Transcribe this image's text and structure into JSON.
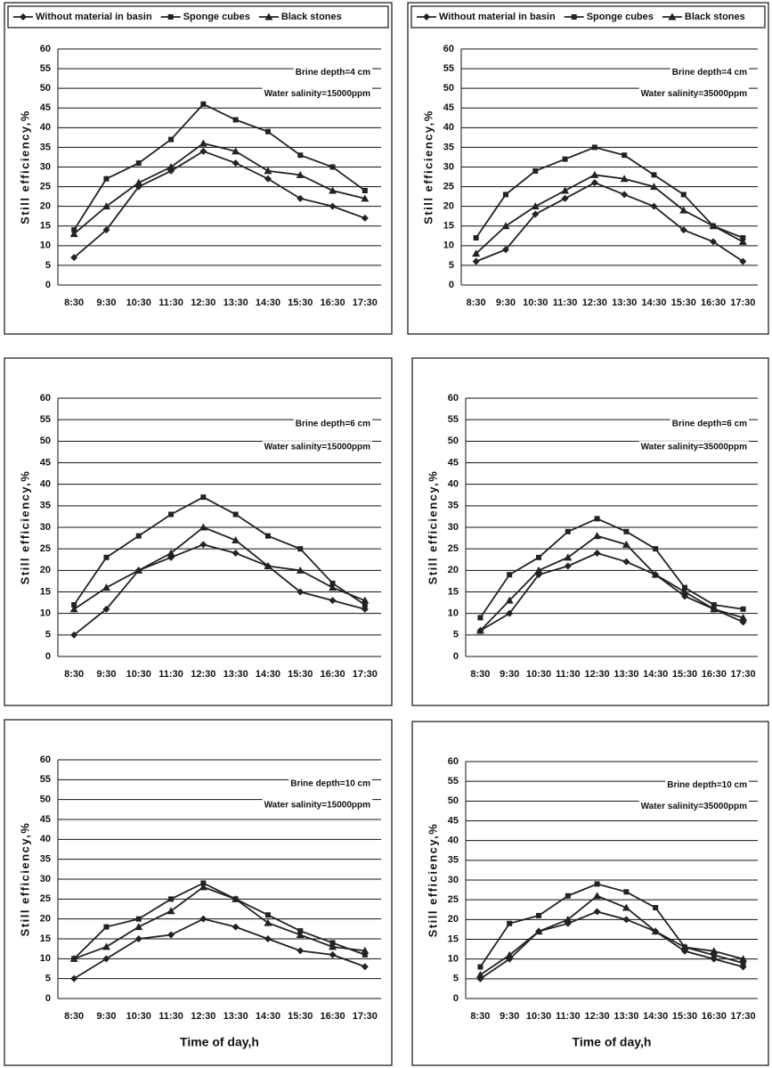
{
  "chart_data": [
    {
      "type": "line",
      "ylabel": "Still efficiency,%",
      "categories": [
        "8:30",
        "9:30",
        "10:30",
        "11:30",
        "12:30",
        "13:30",
        "14:30",
        "15:30",
        "16:30",
        "17:30"
      ],
      "ylim": [
        0,
        60
      ],
      "yticks": [
        0,
        5,
        10,
        15,
        20,
        25,
        30,
        35,
        40,
        45,
        50,
        55,
        60
      ],
      "grid": true,
      "annotations": [
        "Brine depth=4 cm",
        "Water salinity=15000ppm"
      ],
      "series": [
        {
          "name": "Without material in basin",
          "color": "#222",
          "marker": "diamond",
          "values": [
            7,
            14,
            25,
            29,
            34,
            31,
            27,
            22,
            20,
            17
          ]
        },
        {
          "name": "Sponge cubes",
          "color": "#222",
          "marker": "square",
          "values": [
            14,
            27,
            31,
            37,
            46,
            42,
            39,
            33,
            30,
            24
          ]
        },
        {
          "name": "Black stones",
          "color": "#222",
          "marker": "triangle",
          "values": [
            13,
            20,
            26,
            30,
            36,
            34,
            29,
            28,
            24,
            22
          ]
        }
      ]
    },
    {
      "type": "line",
      "ylabel": "Still efficiency,%",
      "categories": [
        "8:30",
        "9:30",
        "10:30",
        "11:30",
        "12:30",
        "13:30",
        "14:30",
        "15:30",
        "16:30",
        "17:30"
      ],
      "ylim": [
        0,
        60
      ],
      "yticks": [
        0,
        5,
        10,
        15,
        20,
        25,
        30,
        35,
        40,
        45,
        50,
        55,
        60
      ],
      "grid": true,
      "annotations": [
        "Brine depth=4 cm",
        "Water salinity=35000ppm"
      ],
      "series": [
        {
          "name": "Without material in basin",
          "color": "#222",
          "marker": "diamond",
          "values": [
            6,
            9,
            18,
            22,
            26,
            23,
            20,
            14,
            11,
            6
          ]
        },
        {
          "name": "Sponge cubes",
          "color": "#222",
          "marker": "square",
          "values": [
            12,
            23,
            29,
            32,
            35,
            33,
            28,
            23,
            15,
            12
          ]
        },
        {
          "name": "Black stones",
          "color": "#222",
          "marker": "triangle",
          "values": [
            8,
            15,
            20,
            24,
            28,
            27,
            25,
            19,
            15,
            11
          ]
        }
      ]
    },
    {
      "type": "line",
      "ylabel": "Still efficiency,%",
      "categories": [
        "8:30",
        "9:30",
        "10:30",
        "11:30",
        "12:30",
        "13:30",
        "14:30",
        "15:30",
        "16:30",
        "17:30"
      ],
      "ylim": [
        0,
        60
      ],
      "yticks": [
        0,
        5,
        10,
        15,
        20,
        25,
        30,
        35,
        40,
        45,
        50,
        55,
        60
      ],
      "grid": true,
      "annotations": [
        "Brine depth=6 cm",
        "Water salinity=15000ppm"
      ],
      "series": [
        {
          "color": "#222",
          "marker": "diamond",
          "values": [
            5,
            11,
            20,
            23,
            26,
            24,
            21,
            15,
            13,
            11
          ]
        },
        {
          "color": "#222",
          "marker": "square",
          "values": [
            12,
            23,
            28,
            33,
            37,
            33,
            28,
            25,
            17,
            12
          ]
        },
        {
          "color": "#222",
          "marker": "triangle",
          "values": [
            11,
            16,
            20,
            24,
            30,
            27,
            21,
            20,
            16,
            13
          ]
        }
      ]
    },
    {
      "type": "line",
      "ylabel": "Still efficiency,%",
      "categories": [
        "8:30",
        "9:30",
        "10:30",
        "11:30",
        "12:30",
        "13:30",
        "14:30",
        "15:30",
        "16:30",
        "17:30"
      ],
      "ylim": [
        0,
        60
      ],
      "yticks": [
        0,
        5,
        10,
        15,
        20,
        25,
        30,
        35,
        40,
        45,
        50,
        55,
        60
      ],
      "grid": true,
      "annotations": [
        "Brine depth=6 cm",
        "Water salinity=35000ppm"
      ],
      "series": [
        {
          "color": "#222",
          "marker": "diamond",
          "values": [
            6,
            10,
            19,
            21,
            24,
            22,
            19,
            14,
            11,
            8
          ]
        },
        {
          "color": "#222",
          "marker": "square",
          "values": [
            9,
            19,
            23,
            29,
            32,
            29,
            25,
            16,
            12,
            11
          ]
        },
        {
          "color": "#222",
          "marker": "triangle",
          "values": [
            6,
            13,
            20,
            23,
            28,
            26,
            19,
            15,
            11,
            9
          ]
        }
      ]
    },
    {
      "type": "line",
      "ylabel": "Still efficiency,%",
      "xlabel": "Time of day,h",
      "categories": [
        "8:30",
        "9:30",
        "10:30",
        "11:30",
        "12:30",
        "13:30",
        "14:30",
        "15:30",
        "16:30",
        "17:30"
      ],
      "ylim": [
        0,
        60
      ],
      "yticks": [
        0,
        5,
        10,
        15,
        20,
        25,
        30,
        35,
        40,
        45,
        50,
        55,
        60
      ],
      "grid": true,
      "annotations": [
        "Brine depth=10 cm",
        "Water salinity=15000ppm"
      ],
      "series": [
        {
          "color": "#222",
          "marker": "diamond",
          "values": [
            5,
            10,
            15,
            16,
            20,
            18,
            15,
            12,
            11,
            8
          ]
        },
        {
          "color": "#222",
          "marker": "square",
          "values": [
            10,
            18,
            20,
            25,
            29,
            25,
            21,
            17,
            14,
            11
          ]
        },
        {
          "color": "#222",
          "marker": "triangle",
          "values": [
            10,
            13,
            18,
            22,
            28,
            25,
            19,
            16,
            13,
            12
          ]
        }
      ]
    },
    {
      "type": "line",
      "ylabel": "Still efficiency,%",
      "xlabel": "Time of day,h",
      "categories": [
        "8:30",
        "9:30",
        "10:30",
        "11:30",
        "12:30",
        "13:30",
        "14:30",
        "15:30",
        "16:30",
        "17:30"
      ],
      "ylim": [
        0,
        60
      ],
      "yticks": [
        0,
        5,
        10,
        15,
        20,
        25,
        30,
        35,
        40,
        45,
        50,
        55,
        60
      ],
      "grid": true,
      "annotations": [
        "Brine depth=10 cm",
        "Water salinity=35000ppm"
      ],
      "series": [
        {
          "color": "#222",
          "marker": "diamond",
          "values": [
            5,
            10,
            17,
            19,
            22,
            20,
            17,
            12,
            10,
            8
          ]
        },
        {
          "color": "#222",
          "marker": "square",
          "values": [
            8,
            19,
            21,
            26,
            29,
            27,
            23,
            13,
            11,
            9
          ]
        },
        {
          "color": "#222",
          "marker": "triangle",
          "values": [
            6,
            11,
            17,
            20,
            26,
            23,
            17,
            13,
            12,
            10
          ]
        }
      ]
    }
  ]
}
